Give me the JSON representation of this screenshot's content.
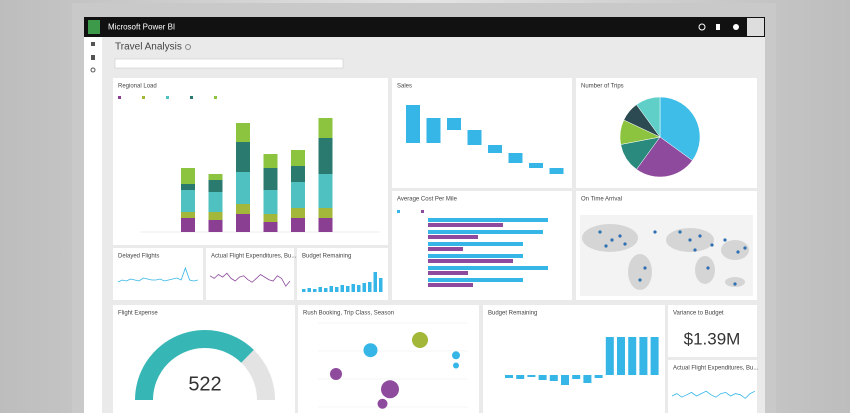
{
  "app": {
    "name": "Microsoft Power BI"
  },
  "dashboard": {
    "title": "Travel Analysis"
  },
  "tiles": {
    "regional_load": {
      "title": "Regional Load",
      "series": [
        {
          "color": "#8b3f93",
          "values": [
            14,
            12,
            18,
            10,
            14,
            14
          ]
        },
        {
          "color": "#a3b83a",
          "values": [
            6,
            8,
            10,
            8,
            10,
            10
          ]
        },
        {
          "color": "#4fc1c1",
          "values": [
            22,
            20,
            32,
            24,
            26,
            34
          ]
        },
        {
          "color": "#2b7a6f",
          "values": [
            6,
            12,
            30,
            22,
            16,
            36
          ]
        },
        {
          "color": "#8cc43f",
          "values": [
            16,
            6,
            19,
            14,
            16,
            20
          ]
        }
      ]
    },
    "sales": {
      "title": "Sales",
      "color": "#35b6e6",
      "values": [
        -38,
        25,
        -12,
        -15,
        -8,
        -10,
        -5,
        -6
      ]
    },
    "number_of_trips": {
      "title": "Number of Trips",
      "values": [
        35,
        25,
        12,
        10,
        8,
        10
      ],
      "colors": [
        "#3dbde8",
        "#8e4a9c",
        "#2b8a7e",
        "#8cc43f",
        "#2c4a52",
        "#5fcfc8"
      ]
    },
    "average_cost": {
      "title": "Average Cost Per Mile",
      "series": [
        {
          "color": "#35b6e6",
          "values": [
            120,
            115,
            95,
            95,
            120,
            95
          ]
        },
        {
          "color": "#8e4a9c",
          "values": [
            75,
            50,
            35,
            85,
            40,
            45
          ]
        }
      ]
    },
    "on_time_arrival": {
      "title": "On Time Arrival"
    },
    "delayed_flights": {
      "title": "Delayed Flights",
      "color": "#35b6e6",
      "values": [
        10,
        12,
        11,
        13,
        12,
        11,
        14,
        13,
        12,
        12,
        13,
        11,
        12,
        13,
        14,
        12,
        24,
        12,
        11,
        12
      ]
    },
    "actual_expenditures": {
      "title": "Actual Flight Expenditures, Bu...",
      "color": "#8e4a9c",
      "values": [
        14,
        12,
        15,
        13,
        16,
        12,
        10,
        13,
        14,
        11,
        9,
        12,
        15,
        13,
        11,
        10,
        14,
        12,
        6,
        10
      ]
    },
    "budget_remaining_small": {
      "title": "Budget Remaining",
      "color": "#35b6e6",
      "values": [
        3,
        4,
        3,
        5,
        4,
        6,
        5,
        7,
        6,
        8,
        7,
        9,
        10,
        20,
        14
      ]
    },
    "flight_expense": {
      "title": "Flight Expense",
      "value": 522,
      "range": [
        0,
        700
      ],
      "color": "#37b6b6"
    },
    "rush_booking": {
      "title": "Rush Booking, Trip Class, Season",
      "xlim": [
        0,
        100
      ],
      "ylim": [
        0,
        100
      ],
      "x": [
        35,
        68,
        12,
        48,
        92,
        92,
        43
      ],
      "y": [
        68,
        80,
        40,
        22,
        62,
        50,
        5
      ],
      "size": [
        7,
        8,
        6,
        9,
        4,
        3,
        5
      ],
      "colors": [
        "#35b6e6",
        "#a3b83a",
        "#8e4a9c",
        "#8e4a9c",
        "#35b6e6",
        "#35b6e6",
        "#8e4a9c"
      ]
    },
    "budget_remaining": {
      "title": "Budget Remaining",
      "color": "#35b6e6",
      "values": [
        -3,
        -4,
        -2,
        -5,
        -6,
        -10,
        -4,
        -8,
        -3,
        38,
        38,
        38,
        38,
        38
      ]
    },
    "variance_to_budget": {
      "title": "Variance to Budget",
      "value": "$1.39M"
    },
    "actual_expenditures_2": {
      "title": "Actual Flight Expenditures, Bu...",
      "color": "#35b6e6",
      "values": [
        10,
        12,
        9,
        11,
        13,
        10,
        12,
        14,
        11,
        9,
        12,
        13,
        10,
        12,
        11,
        8,
        12,
        14
      ]
    }
  }
}
